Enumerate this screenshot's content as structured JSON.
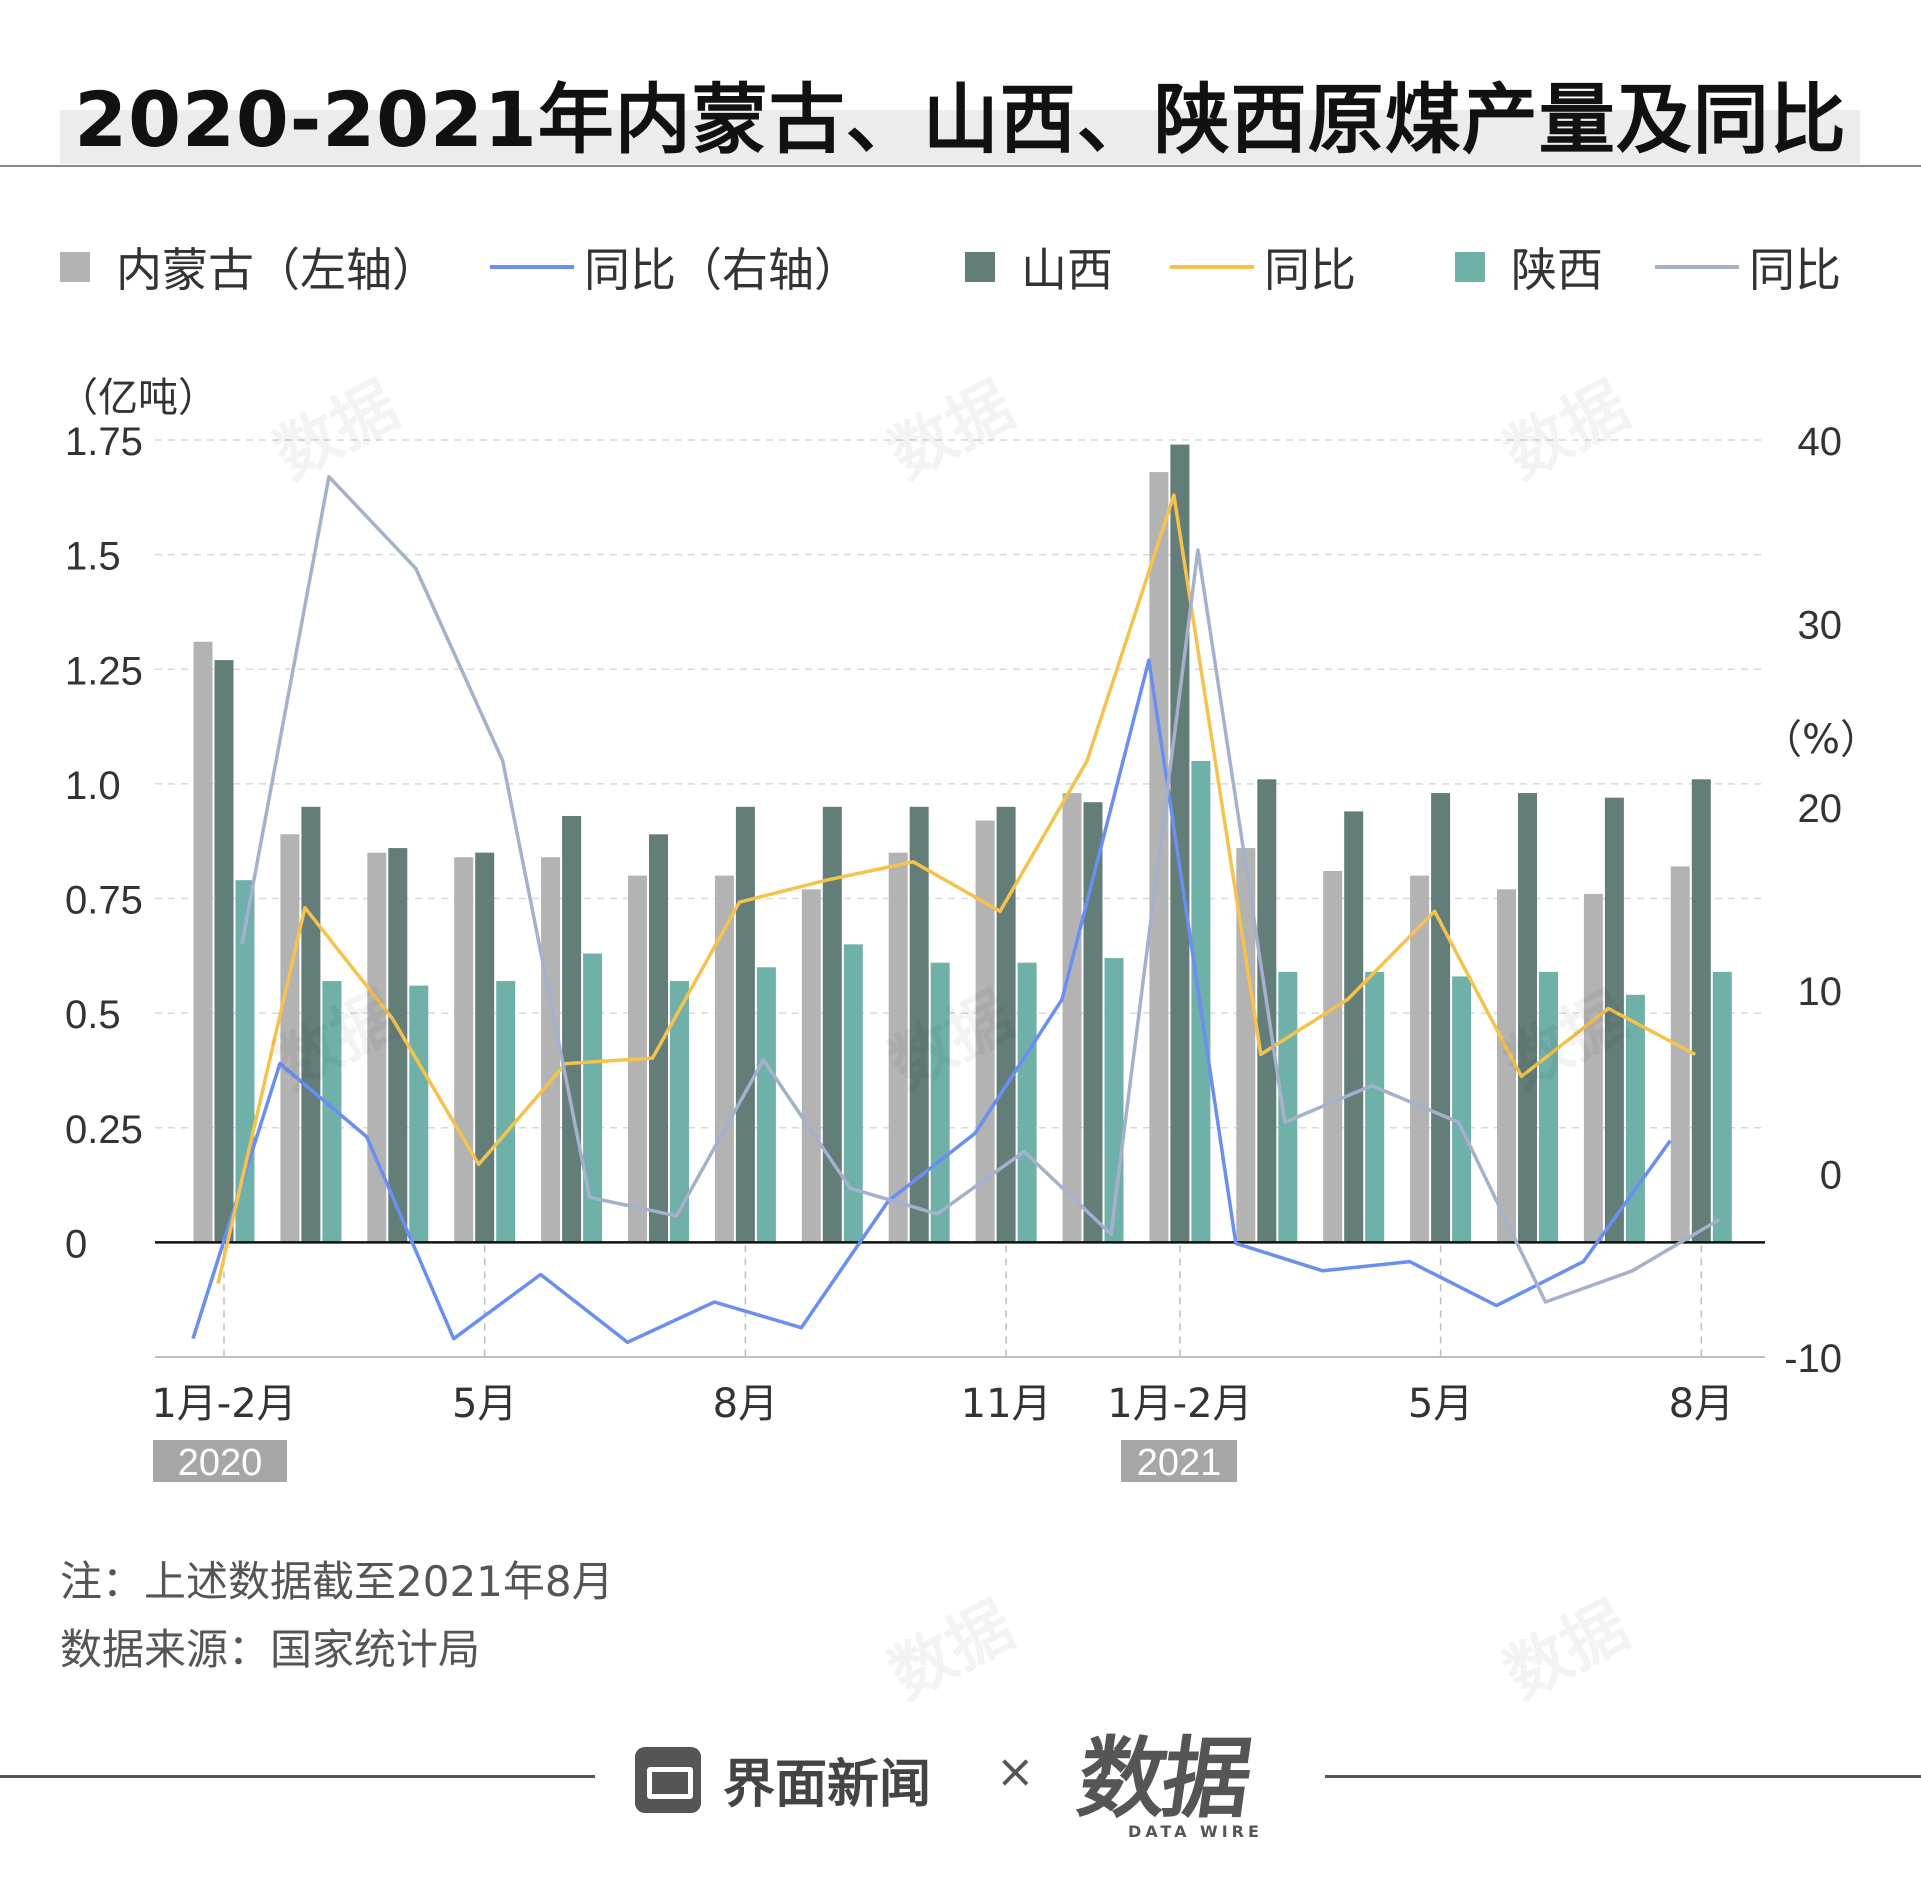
{
  "title": "2020-2021年内蒙古、山西、陕西原煤产量及同比",
  "legend": [
    {
      "label": "内蒙古（左轴）",
      "kind": "bar",
      "color": "#b3b3b3"
    },
    {
      "label": "同比（右轴）",
      "kind": "line",
      "color": "#6a8ff0"
    },
    {
      "label": "山西",
      "kind": "bar",
      "color": "#637d78"
    },
    {
      "label": "同比",
      "kind": "line",
      "color": "#f5c24d"
    },
    {
      "label": "陕西",
      "kind": "bar",
      "color": "#6fb0a8"
    },
    {
      "label": "同比",
      "kind": "line",
      "color": "#a5b1cc"
    }
  ],
  "left_unit": "（亿吨）",
  "right_unit": "（%）",
  "note": "注：上述数据截至2021年8月",
  "source": "数据来源：国家统计局",
  "brand": "界面新闻",
  "times_sign": "×",
  "logo": "数据",
  "logo_sub": "DATA WIRE",
  "watermark": "数据",
  "chart_data": {
    "type": "bar",
    "title": "2020-2021年内蒙古、山西、陕西原煤产量及同比",
    "categories": [
      "2020-01/02",
      "2020-03",
      "2020-04",
      "2020-05",
      "2020-06",
      "2020-07",
      "2020-08",
      "2020-09",
      "2020-10",
      "2020-11",
      "2020-12",
      "2021-01/02",
      "2021-03",
      "2021-04",
      "2021-05",
      "2021-06",
      "2021-07",
      "2021-08"
    ],
    "x_tick_labels": [
      {
        "index": 0,
        "label": "1月-2月"
      },
      {
        "index": 3,
        "label": "5月"
      },
      {
        "index": 6,
        "label": "8月"
      },
      {
        "index": 9,
        "label": "11月"
      },
      {
        "index": 11,
        "label": "1月-2月"
      },
      {
        "index": 14,
        "label": "5月"
      },
      {
        "index": 17,
        "label": "8月"
      }
    ],
    "year_labels": [
      {
        "index": 0,
        "label": "2020"
      },
      {
        "index": 11,
        "label": "2021"
      }
    ],
    "series": [
      {
        "name": "内蒙古",
        "kind": "bar",
        "axis": "left",
        "color": "#b3b3b3",
        "values": [
          1.31,
          0.89,
          0.85,
          0.84,
          0.84,
          0.8,
          0.8,
          0.77,
          0.85,
          0.92,
          0.98,
          1.68,
          0.86,
          0.81,
          0.8,
          0.77,
          0.76,
          0.82
        ]
      },
      {
        "name": "山西",
        "kind": "bar",
        "axis": "left",
        "color": "#637d78",
        "values": [
          1.27,
          0.95,
          0.86,
          0.85,
          0.93,
          0.89,
          0.95,
          0.95,
          0.95,
          0.95,
          0.96,
          1.74,
          1.01,
          0.94,
          0.98,
          0.98,
          0.97,
          1.01
        ]
      },
      {
        "name": "陕西",
        "kind": "bar",
        "axis": "left",
        "color": "#6fb0a8",
        "values": [
          0.79,
          0.57,
          0.56,
          0.57,
          0.63,
          0.57,
          0.6,
          0.65,
          0.61,
          0.61,
          0.62,
          1.05,
          0.59,
          0.59,
          0.58,
          0.59,
          0.54,
          0.59
        ]
      },
      {
        "name": "内蒙古同比",
        "kind": "line",
        "axis": "right",
        "color": "#6a8ff0",
        "values": [
          -9,
          6,
          2,
          -9,
          -5.5,
          -9.2,
          -7,
          -8.4,
          -1.5,
          2.2,
          9.5,
          28,
          -3.8,
          -5.3,
          -4.8,
          -7.2,
          -4.8,
          1.8
        ]
      },
      {
        "name": "山西同比",
        "kind": "line",
        "axis": "right",
        "color": "#f5c24d",
        "values": [
          -6,
          14.5,
          8.5,
          0.5,
          6,
          6.3,
          14.8,
          16,
          17,
          14.3,
          22.5,
          37,
          6.5,
          9.5,
          14.3,
          5.3,
          9,
          6.5
        ]
      },
      {
        "name": "陕西同比",
        "kind": "line",
        "axis": "right",
        "color": "#a5b1cc",
        "values": [
          12.5,
          38,
          33,
          22.5,
          -1.3,
          -2.3,
          6.2,
          -0.8,
          -2.2,
          1.2,
          -3.3,
          34,
          2.8,
          4.8,
          2.8,
          -7,
          -5.3,
          -2.5
        ]
      }
    ],
    "left_axis": {
      "label": "（亿吨）",
      "ylim": [
        -0.25,
        1.75
      ],
      "ticks": [
        0,
        0.25,
        0.5,
        0.75,
        1.0,
        1.25,
        1.5,
        1.75
      ],
      "tick_labels": [
        "0",
        "0.25",
        "0.5",
        "0.75",
        "1.0",
        "1.25",
        "1.5",
        "1.75"
      ]
    },
    "right_axis": {
      "label": "（%）",
      "ylim": [
        -10,
        40
      ],
      "ticks": [
        -10,
        0,
        10,
        20,
        30,
        40
      ],
      "tick_labels": [
        "-10",
        "0",
        "10",
        "20",
        "30",
        "40"
      ]
    },
    "grid": true,
    "legend_position": "top"
  }
}
